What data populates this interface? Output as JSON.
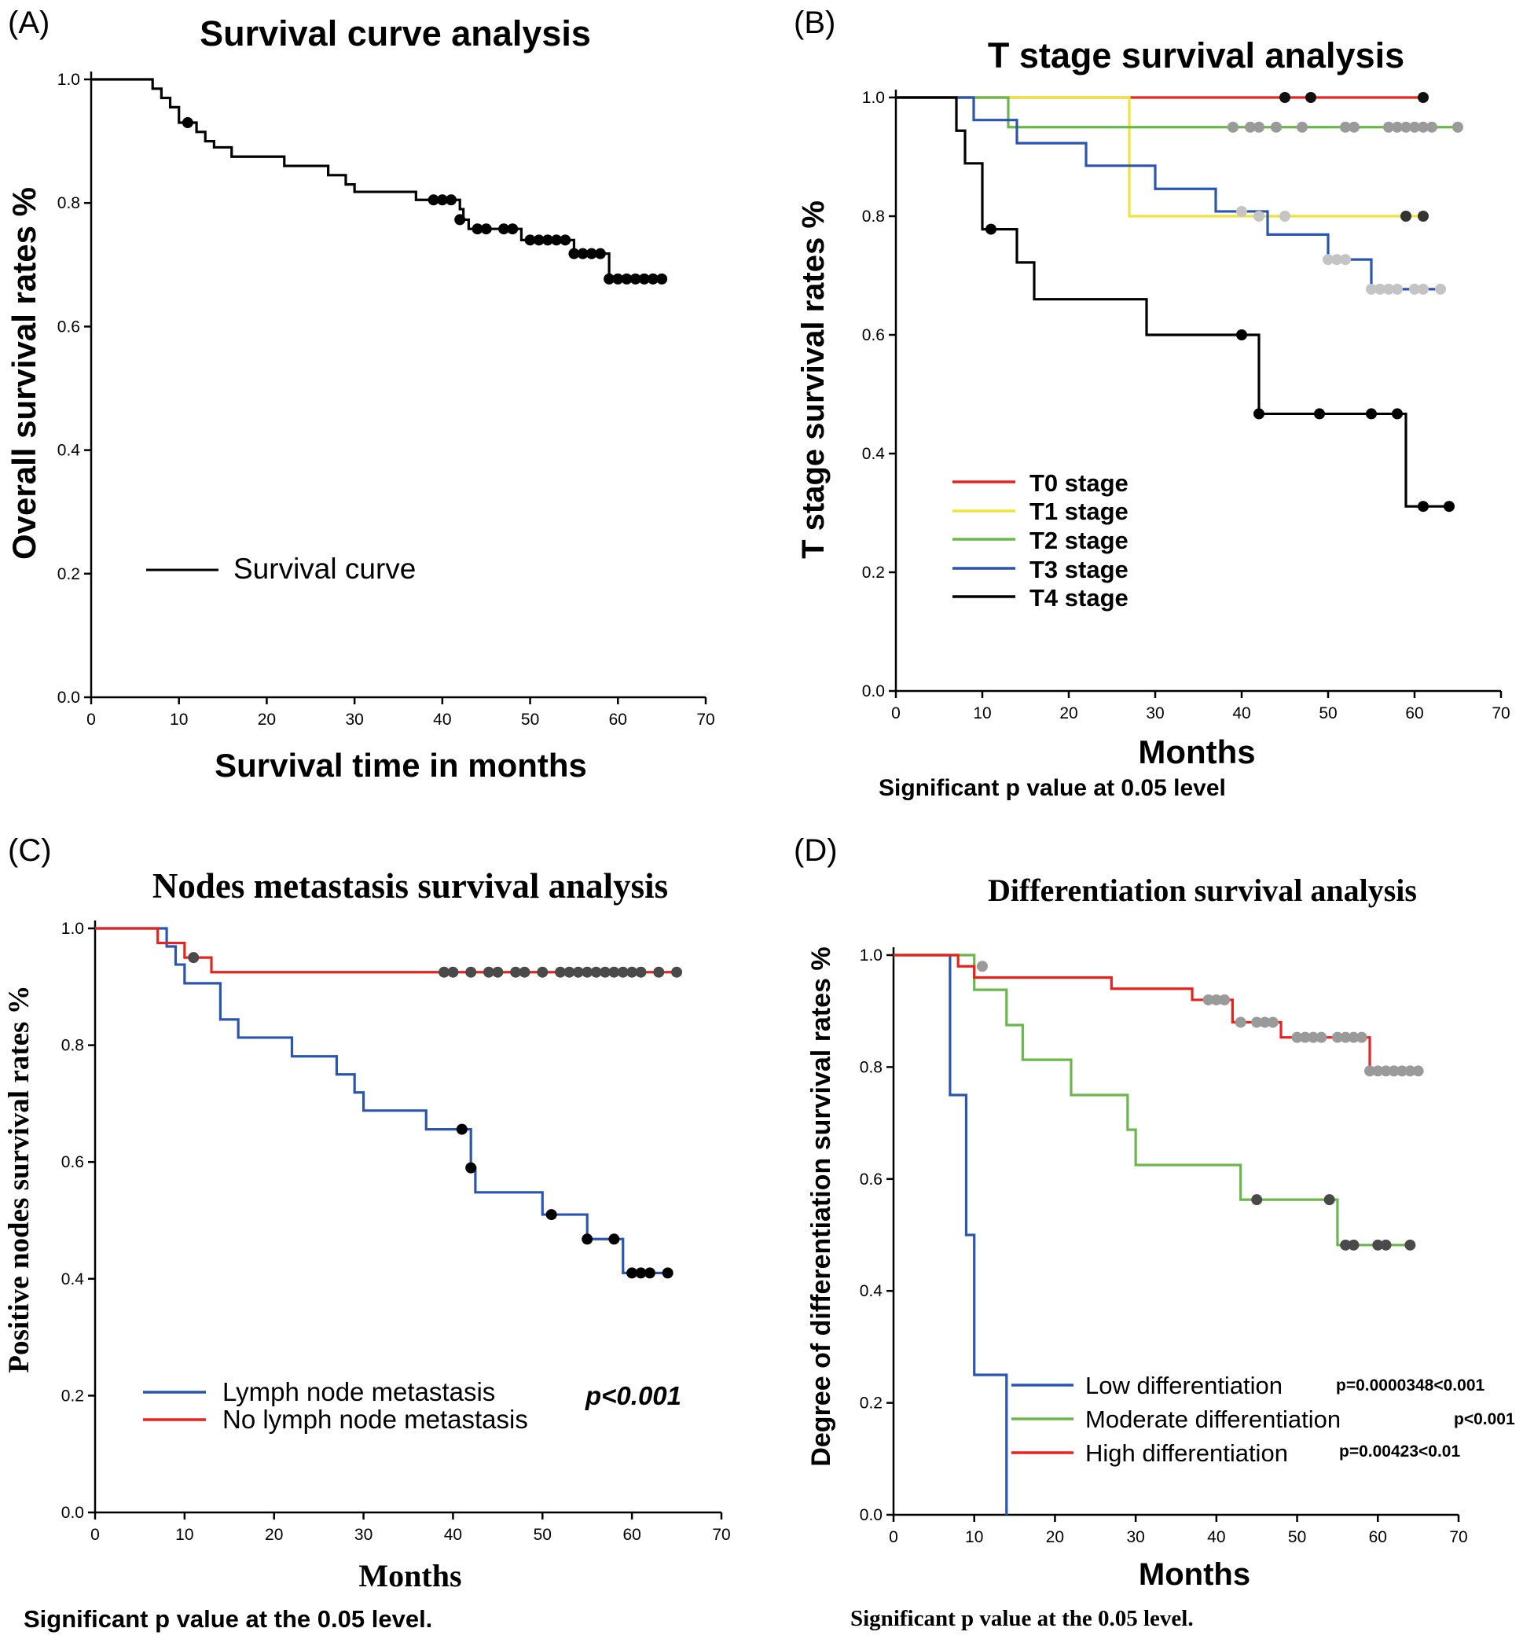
{
  "figure_notes": {
    "B": "Significant p value at 0.05 level",
    "C": "Significant p value at the 0.05 level.",
    "D": "Significant p value at the 0.05 level."
  },
  "chart_data": [
    {
      "id": "A",
      "panel_label": "(A)",
      "type": "line",
      "title": "Survival curve analysis",
      "xlabel": "Survival time in months",
      "ylabel": "Overall survival rates %",
      "xlim": [
        0,
        70
      ],
      "ylim": [
        0,
        1.0
      ],
      "xticks": [
        "0",
        "10",
        "20",
        "30",
        "40",
        "50",
        "60",
        "70"
      ],
      "yticks": [
        "0.0",
        "0.2",
        "0.4",
        "0.6",
        "0.8",
        "1.0"
      ],
      "legend": "bottom-left",
      "series": [
        {
          "name": "Survival curve",
          "color": "#000000",
          "steps": [
            [
              0,
              1.0
            ],
            [
              7,
              0.985
            ],
            [
              8,
              0.97
            ],
            [
              9,
              0.955
            ],
            [
              10,
              0.93
            ],
            [
              12,
              0.915
            ],
            [
              13,
              0.9
            ],
            [
              14,
              0.89
            ],
            [
              16,
              0.875
            ],
            [
              22,
              0.86
            ],
            [
              27,
              0.845
            ],
            [
              29,
              0.83
            ],
            [
              30,
              0.818
            ],
            [
              37,
              0.805
            ],
            [
              42,
              0.79
            ],
            [
              42.4,
              0.773
            ],
            [
              43,
              0.758
            ],
            [
              49,
              0.74
            ],
            [
              55,
              0.718
            ],
            [
              59,
              0.677
            ],
            [
              65,
              0.677
            ]
          ],
          "censored": [
            [
              11,
              0.93
            ],
            [
              39,
              0.805
            ],
            [
              40,
              0.805
            ],
            [
              41,
              0.805
            ],
            [
              42,
              0.773
            ],
            [
              44,
              0.758
            ],
            [
              45,
              0.758
            ],
            [
              47,
              0.758
            ],
            [
              48,
              0.758
            ],
            [
              50,
              0.74
            ],
            [
              51,
              0.74
            ],
            [
              52,
              0.74
            ],
            [
              53,
              0.74
            ],
            [
              54,
              0.74
            ],
            [
              55,
              0.718
            ],
            [
              56,
              0.718
            ],
            [
              57,
              0.718
            ],
            [
              58,
              0.718
            ],
            [
              59,
              0.677
            ],
            [
              60,
              0.677
            ],
            [
              61,
              0.677
            ],
            [
              62,
              0.677
            ],
            [
              63,
              0.677
            ],
            [
              64,
              0.677
            ],
            [
              65,
              0.677
            ]
          ],
          "censor_color": "#000000"
        }
      ]
    },
    {
      "id": "B",
      "panel_label": "(B)",
      "type": "line",
      "title": "T stage survival analysis",
      "xlabel": "Months",
      "ylabel": "T stage survival rates %",
      "xlim": [
        0,
        70
      ],
      "ylim": [
        0,
        1.0
      ],
      "xticks": [
        "0",
        "10",
        "20",
        "30",
        "40",
        "50",
        "60",
        "70"
      ],
      "yticks": [
        "0.0",
        "0.2",
        "0.4",
        "0.6",
        "0.8",
        "1.0"
      ],
      "legend": "bottom-left",
      "series": [
        {
          "name": "T0 stage",
          "color": "#e8221d",
          "steps": [
            [
              0,
              1.0
            ],
            [
              61,
              1.0
            ]
          ],
          "censored": [
            [
              45,
              1.0
            ],
            [
              48,
              1.0
            ],
            [
              61,
              1.0
            ]
          ],
          "censor_color": "#111111"
        },
        {
          "name": "T1 stage",
          "color": "#efe43a",
          "steps": [
            [
              0,
              1.0
            ],
            [
              27,
              0.8
            ],
            [
              61,
              0.8
            ]
          ],
          "censored": [
            [
              59,
              0.8
            ],
            [
              61,
              0.8
            ]
          ],
          "censor_color": "#333333"
        },
        {
          "name": "T2 stage",
          "color": "#6ab84a",
          "steps": [
            [
              0,
              1.0
            ],
            [
              13,
              0.95
            ],
            [
              65,
              0.95
            ]
          ],
          "censored": [
            [
              39,
              0.95
            ],
            [
              41,
              0.95
            ],
            [
              42,
              0.95
            ],
            [
              44,
              0.95
            ],
            [
              47,
              0.95
            ],
            [
              52,
              0.95
            ],
            [
              53,
              0.95
            ],
            [
              57,
              0.95
            ],
            [
              58,
              0.95
            ],
            [
              59,
              0.95
            ],
            [
              60,
              0.95
            ],
            [
              61,
              0.95
            ],
            [
              62,
              0.95
            ],
            [
              65,
              0.95
            ]
          ],
          "censor_color": "#9a9a9a"
        },
        {
          "name": "T3 stage",
          "color": "#2a55b0",
          "steps": [
            [
              0,
              1.0
            ],
            [
              9,
              0.962
            ],
            [
              14,
              0.923
            ],
            [
              22,
              0.885
            ],
            [
              30,
              0.846
            ],
            [
              37,
              0.808
            ],
            [
              43,
              0.769
            ],
            [
              50,
              0.727
            ],
            [
              55,
              0.677
            ],
            [
              63,
              0.677
            ]
          ],
          "censored": [
            [
              40,
              0.808
            ],
            [
              42,
              0.8
            ],
            [
              45,
              0.8
            ],
            [
              50,
              0.727
            ],
            [
              51,
              0.727
            ],
            [
              52,
              0.727
            ],
            [
              55,
              0.677
            ],
            [
              56,
              0.677
            ],
            [
              57,
              0.677
            ],
            [
              58,
              0.677
            ],
            [
              60,
              0.677
            ],
            [
              61,
              0.677
            ],
            [
              63,
              0.677
            ]
          ],
          "censor_color": "#c4c4c4"
        },
        {
          "name": "T4 stage",
          "color": "#000000",
          "steps": [
            [
              0,
              1.0
            ],
            [
              7,
              0.944
            ],
            [
              8,
              0.889
            ],
            [
              10,
              0.778
            ],
            [
              14,
              0.722
            ],
            [
              16,
              0.66
            ],
            [
              29,
              0.6
            ],
            [
              42,
              0.467
            ],
            [
              59,
              0.311
            ],
            [
              64,
              0.311
            ]
          ],
          "censored": [
            [
              11,
              0.778
            ],
            [
              40,
              0.6
            ],
            [
              42,
              0.467
            ],
            [
              49,
              0.467
            ],
            [
              55,
              0.467
            ],
            [
              58,
              0.467
            ],
            [
              61,
              0.311
            ],
            [
              64,
              0.311
            ]
          ],
          "censor_color": "#000000"
        }
      ]
    },
    {
      "id": "C",
      "panel_label": "(C)",
      "type": "line",
      "title": "Nodes metastasis survival analysis",
      "xlabel": "Months",
      "ylabel": "Positive nodes survival rates %",
      "annotation": "p<0.001",
      "xlim": [
        0,
        70
      ],
      "ylim": [
        0,
        1.0
      ],
      "xticks": [
        "0",
        "10",
        "20",
        "30",
        "40",
        "50",
        "60",
        "70"
      ],
      "yticks": [
        "0.0",
        "0.2",
        "0.4",
        "0.6",
        "0.8",
        "1.0"
      ],
      "legend": "bottom-left",
      "series": [
        {
          "name": "Lymph node metastasis",
          "color": "#2a55b0",
          "steps": [
            [
              0,
              1.0
            ],
            [
              8,
              0.969
            ],
            [
              9,
              0.938
            ],
            [
              10,
              0.906
            ],
            [
              14,
              0.844
            ],
            [
              16,
              0.813
            ],
            [
              22,
              0.781
            ],
            [
              27,
              0.75
            ],
            [
              29,
              0.719
            ],
            [
              30,
              0.688
            ],
            [
              37,
              0.656
            ],
            [
              42,
              0.59
            ],
            [
              42.5,
              0.548
            ],
            [
              50,
              0.51
            ],
            [
              55,
              0.468
            ],
            [
              59,
              0.41
            ],
            [
              64,
              0.41
            ]
          ],
          "censored": [
            [
              41,
              0.656
            ],
            [
              42,
              0.59
            ],
            [
              51,
              0.51
            ],
            [
              55,
              0.468
            ],
            [
              58,
              0.468
            ],
            [
              60,
              0.41
            ],
            [
              61,
              0.41
            ],
            [
              62,
              0.41
            ],
            [
              64,
              0.41
            ]
          ],
          "censor_color": "#000000"
        },
        {
          "name": "No lymph node metastasis",
          "color": "#e8221d",
          "steps": [
            [
              0,
              1.0
            ],
            [
              7,
              0.975
            ],
            [
              10,
              0.95
            ],
            [
              13,
              0.925
            ],
            [
              65,
              0.925
            ]
          ],
          "censored": [
            [
              11,
              0.95
            ],
            [
              39,
              0.925
            ],
            [
              40,
              0.925
            ],
            [
              42,
              0.925
            ],
            [
              44,
              0.925
            ],
            [
              45,
              0.925
            ],
            [
              47,
              0.925
            ],
            [
              48,
              0.925
            ],
            [
              50,
              0.925
            ],
            [
              52,
              0.925
            ],
            [
              53,
              0.925
            ],
            [
              54,
              0.925
            ],
            [
              55,
              0.925
            ],
            [
              56,
              0.925
            ],
            [
              57,
              0.925
            ],
            [
              58,
              0.925
            ],
            [
              59,
              0.925
            ],
            [
              60,
              0.925
            ],
            [
              61,
              0.925
            ],
            [
              63,
              0.925
            ],
            [
              65,
              0.925
            ]
          ],
          "censor_color": "#4a4a4a"
        }
      ]
    },
    {
      "id": "D",
      "panel_label": "(D)",
      "type": "line",
      "title": "Differentiation survival analysis",
      "xlabel": "Months",
      "ylabel": "Degree of differentiation survival rates %",
      "xlim": [
        0,
        70
      ],
      "ylim": [
        0,
        1.0
      ],
      "xticks": [
        "0",
        "10",
        "20",
        "30",
        "40",
        "50",
        "60",
        "70"
      ],
      "yticks": [
        "0.0",
        "0.2",
        "0.4",
        "0.6",
        "0.8",
        "1.0"
      ],
      "legend": "bottom-center",
      "series": [
        {
          "name": "Low differentiation",
          "color": "#2a55b0",
          "pvalue": "p=0.0000348<0.001",
          "steps": [
            [
              0,
              1.0
            ],
            [
              7,
              0.75
            ],
            [
              9,
              0.5
            ],
            [
              10,
              0.25
            ],
            [
              14,
              0.0
            ]
          ],
          "censored": [],
          "censor_color": "#000000"
        },
        {
          "name": "Moderate differentiation",
          "color": "#6ab84a",
          "pvalue": "p<0.001",
          "steps": [
            [
              0,
              1.0
            ],
            [
              10,
              0.938
            ],
            [
              14,
              0.875
            ],
            [
              16,
              0.813
            ],
            [
              22,
              0.75
            ],
            [
              29,
              0.688
            ],
            [
              30,
              0.625
            ],
            [
              43,
              0.563
            ],
            [
              55,
              0.482
            ],
            [
              64,
              0.482
            ]
          ],
          "censored": [
            [
              45,
              0.563
            ],
            [
              54,
              0.563
            ],
            [
              56,
              0.482
            ],
            [
              57,
              0.482
            ],
            [
              60,
              0.482
            ],
            [
              61,
              0.482
            ],
            [
              64,
              0.482
            ]
          ],
          "censor_color": "#4a4a4a"
        },
        {
          "name": "High differentiation",
          "color": "#e8221d",
          "pvalue": "p=0.00423<0.01",
          "steps": [
            [
              0,
              1.0
            ],
            [
              8,
              0.98
            ],
            [
              10,
              0.96
            ],
            [
              27,
              0.94
            ],
            [
              37,
              0.92
            ],
            [
              42,
              0.88
            ],
            [
              48,
              0.853
            ],
            [
              59,
              0.793
            ],
            [
              65,
              0.793
            ]
          ],
          "censored": [
            [
              11,
              0.98
            ],
            [
              39,
              0.92
            ],
            [
              40,
              0.92
            ],
            [
              41,
              0.92
            ],
            [
              43,
              0.88
            ],
            [
              45,
              0.88
            ],
            [
              46,
              0.88
            ],
            [
              47,
              0.88
            ],
            [
              50,
              0.853
            ],
            [
              51,
              0.853
            ],
            [
              52,
              0.853
            ],
            [
              53,
              0.853
            ],
            [
              55,
              0.853
            ],
            [
              56,
              0.853
            ],
            [
              57,
              0.853
            ],
            [
              58,
              0.853
            ],
            [
              59,
              0.793
            ],
            [
              60,
              0.793
            ],
            [
              61,
              0.793
            ],
            [
              62,
              0.793
            ],
            [
              63,
              0.793
            ],
            [
              64,
              0.793
            ],
            [
              65,
              0.793
            ]
          ],
          "censor_color": "#9a9a9a"
        }
      ]
    }
  ]
}
